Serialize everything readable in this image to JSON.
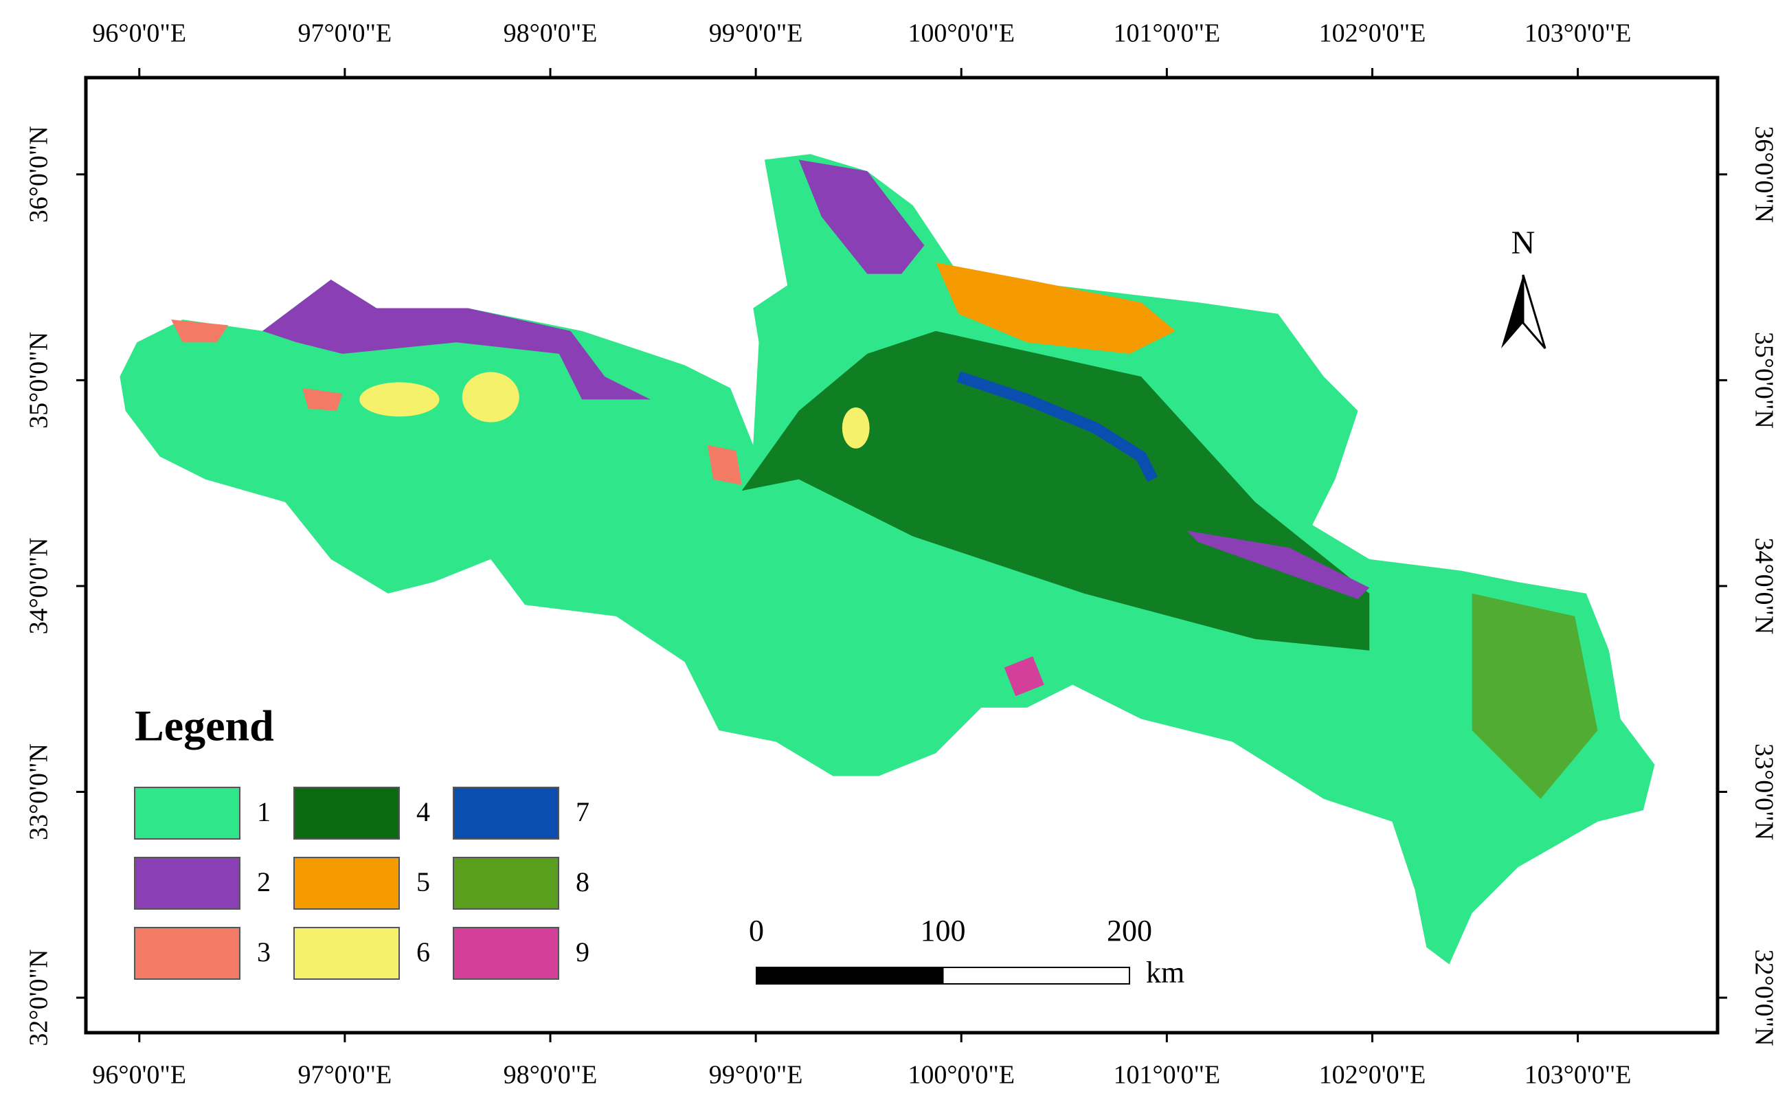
{
  "map": {
    "xlim": [
      95.74,
      103.68
    ],
    "ylim": [
      31.83,
      36.47
    ],
    "lon_ticks": [
      {
        "value": 96,
        "label": "96°0'0\"E"
      },
      {
        "value": 97,
        "label": "97°0'0\"E"
      },
      {
        "value": 98,
        "label": "98°0'0\"E"
      },
      {
        "value": 99,
        "label": "99°0'0\"E"
      },
      {
        "value": 100,
        "label": "100°0'0\"E"
      },
      {
        "value": 101,
        "label": "101°0'0\"E"
      },
      {
        "value": 102,
        "label": "102°0'0\"E"
      },
      {
        "value": 103,
        "label": "103°0'0\"E"
      }
    ],
    "lat_ticks": [
      {
        "value": 32,
        "label": "32°0'0\"N"
      },
      {
        "value": 33,
        "label": "33°0'0\"N"
      },
      {
        "value": 34,
        "label": "34°0'0\"N"
      },
      {
        "value": 35,
        "label": "35°0'0\"N"
      },
      {
        "value": 36,
        "label": "36°0'0\"N"
      }
    ],
    "north_label": "N",
    "legend": {
      "title": "Legend",
      "items": [
        {
          "label": "1",
          "color": "#2fe68b"
        },
        {
          "label": "2",
          "color": "#8a3fb5"
        },
        {
          "label": "3",
          "color": "#f37a64"
        },
        {
          "label": "4",
          "color": "#0a6b10"
        },
        {
          "label": "5",
          "color": "#f59b00"
        },
        {
          "label": "6",
          "color": "#f6f16a"
        },
        {
          "label": "7",
          "color": "#0a4fb0"
        },
        {
          "label": "8",
          "color": "#5a9e1d"
        },
        {
          "label": "9",
          "color": "#d43f9a"
        }
      ]
    },
    "scale_bar": {
      "ticks": [
        0,
        100,
        200
      ],
      "unit": "km"
    }
  }
}
